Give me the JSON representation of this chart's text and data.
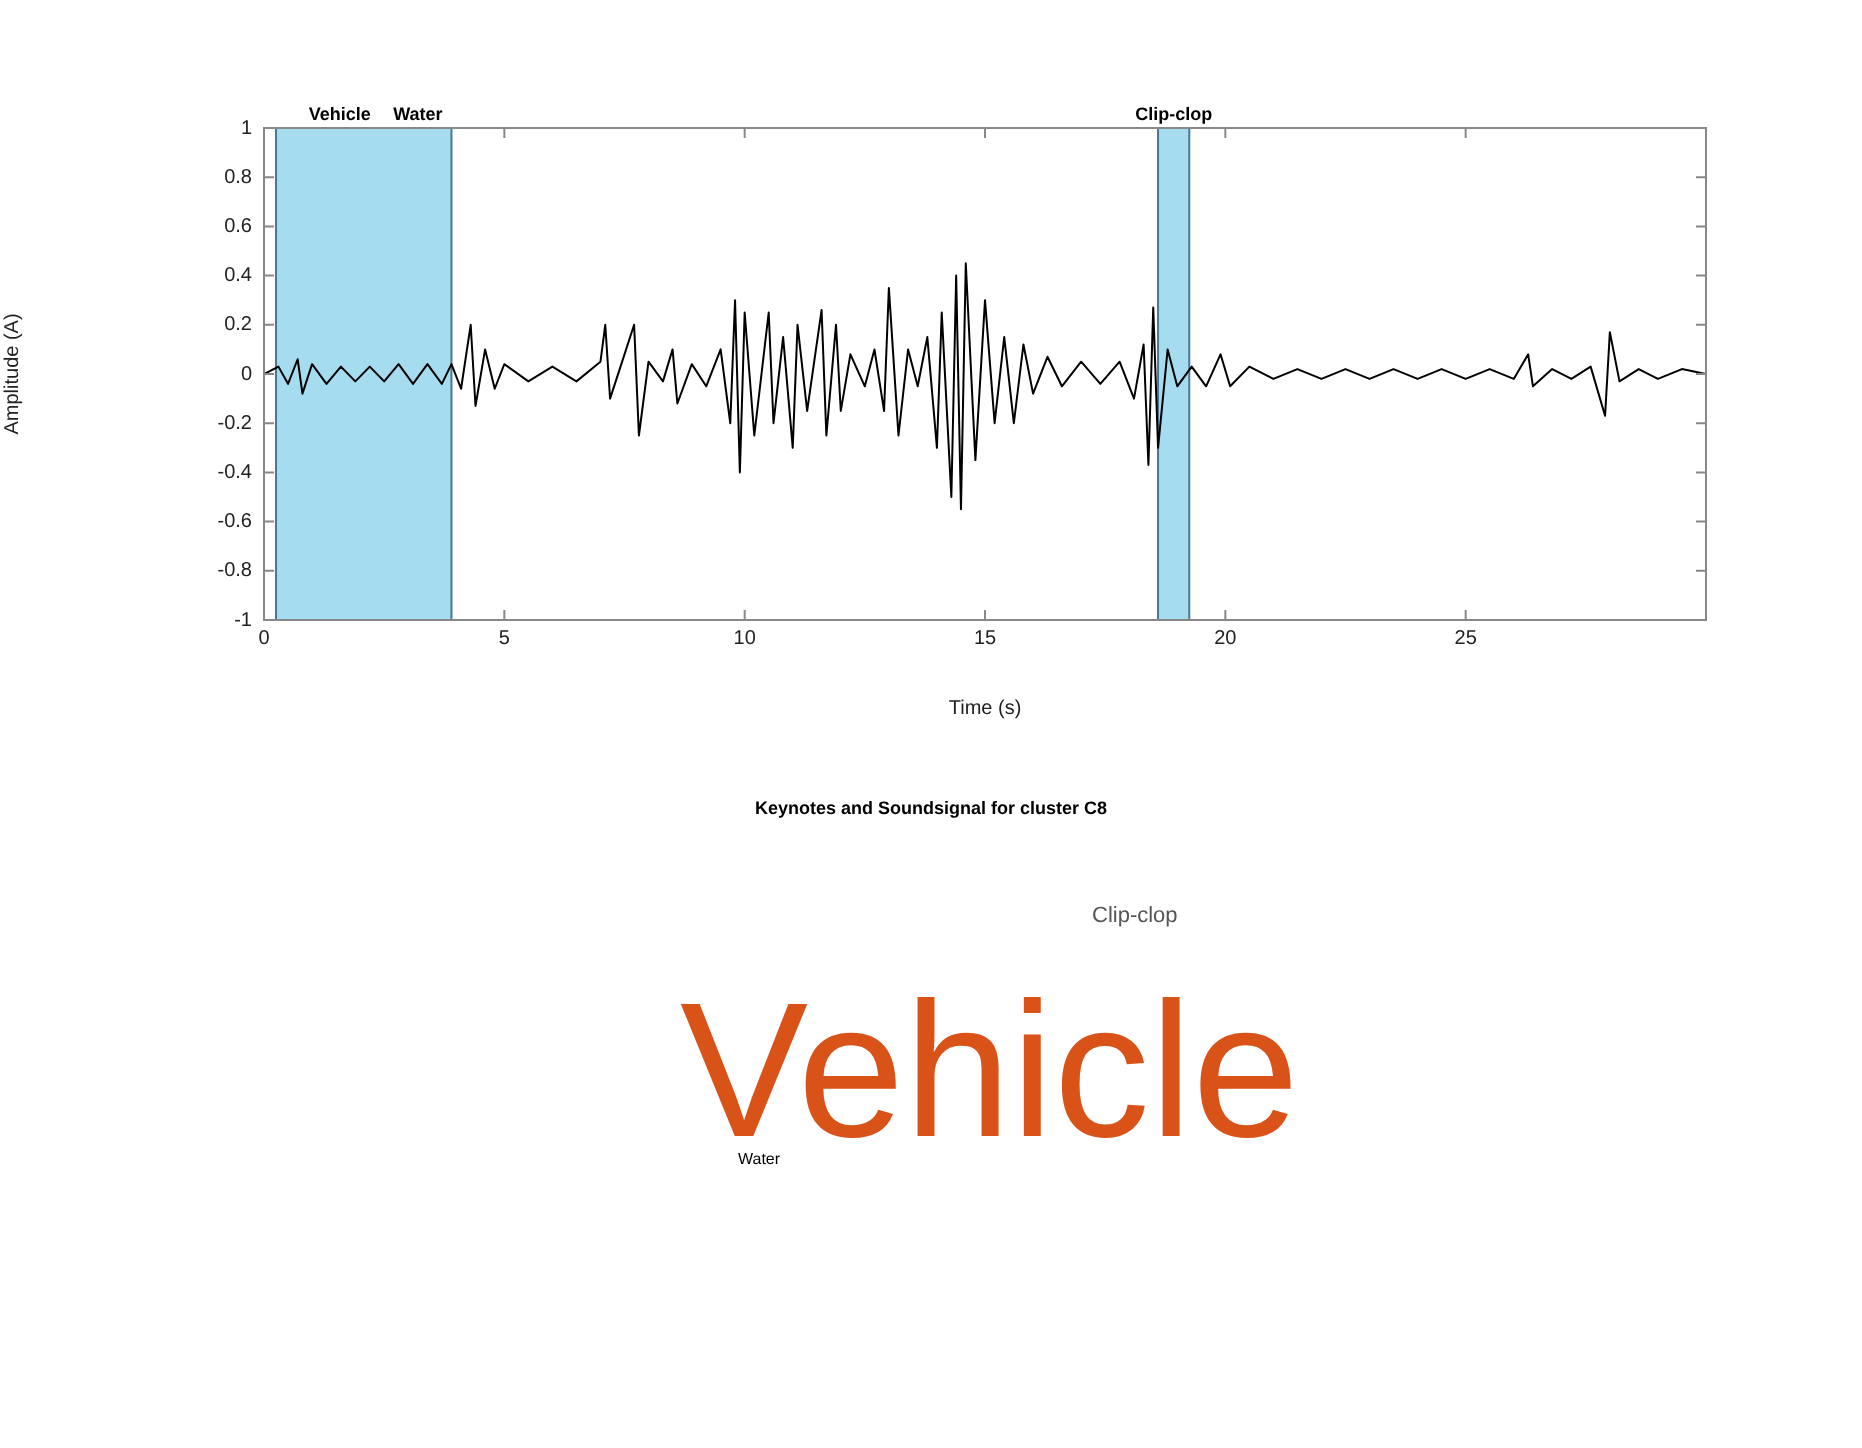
{
  "chart_data": [
    {
      "type": "line",
      "xlabel": "Time (s)",
      "ylabel": "Amplitude (A)",
      "color": "#000000",
      "marker": "none",
      "grid": false,
      "x": [
        0,
        0.3,
        0.5,
        0.7,
        0.8,
        1.0,
        1.3,
        1.6,
        1.9,
        2.2,
        2.5,
        2.8,
        3.1,
        3.4,
        3.7,
        3.9,
        4.1,
        4.3,
        4.4,
        4.6,
        4.8,
        5.0,
        5.5,
        6.0,
        6.5,
        7.0,
        7.1,
        7.2,
        7.5,
        7.7,
        7.8,
        8.0,
        8.3,
        8.5,
        8.6,
        8.9,
        9.2,
        9.5,
        9.7,
        9.8,
        9.9,
        10.0,
        10.2,
        10.5,
        10.6,
        10.8,
        11.0,
        11.1,
        11.3,
        11.6,
        11.7,
        11.9,
        12.0,
        12.2,
        12.5,
        12.7,
        12.9,
        13.0,
        13.2,
        13.4,
        13.6,
        13.8,
        14.0,
        14.1,
        14.3,
        14.4,
        14.5,
        14.6,
        14.8,
        15.0,
        15.2,
        15.4,
        15.6,
        15.8,
        16.0,
        16.3,
        16.6,
        17.0,
        17.4,
        17.8,
        18.1,
        18.3,
        18.4,
        18.5,
        18.6,
        18.8,
        19.0,
        19.3,
        19.6,
        19.9,
        20.1,
        20.5,
        21.0,
        21.5,
        22.0,
        22.5,
        23.0,
        23.5,
        24.0,
        24.5,
        25.0,
        25.5,
        26.0,
        26.3,
        26.4,
        26.8,
        27.2,
        27.6,
        27.9,
        28.0,
        28.2,
        28.6,
        29.0,
        29.5,
        30.0
      ],
      "values": [
        0,
        0.03,
        -0.04,
        0.06,
        -0.08,
        0.04,
        -0.04,
        0.03,
        -0.03,
        0.03,
        -0.03,
        0.04,
        -0.04,
        0.04,
        -0.04,
        0.04,
        -0.06,
        0.2,
        -0.13,
        0.1,
        -0.06,
        0.04,
        -0.03,
        0.03,
        -0.03,
        0.05,
        0.2,
        -0.1,
        0.08,
        0.2,
        -0.25,
        0.05,
        -0.03,
        0.1,
        -0.12,
        0.04,
        -0.05,
        0.1,
        -0.2,
        0.3,
        -0.4,
        0.25,
        -0.25,
        0.25,
        -0.2,
        0.15,
        -0.3,
        0.2,
        -0.15,
        0.26,
        -0.25,
        0.2,
        -0.15,
        0.08,
        -0.05,
        0.1,
        -0.15,
        0.35,
        -0.25,
        0.1,
        -0.05,
        0.15,
        -0.3,
        0.25,
        -0.5,
        0.4,
        -0.55,
        0.45,
        -0.35,
        0.3,
        -0.2,
        0.15,
        -0.2,
        0.12,
        -0.08,
        0.07,
        -0.05,
        0.05,
        -0.04,
        0.05,
        -0.1,
        0.12,
        -0.37,
        0.27,
        -0.3,
        0.1,
        -0.05,
        0.03,
        -0.05,
        0.08,
        -0.05,
        0.03,
        -0.02,
        0.02,
        -0.02,
        0.02,
        -0.02,
        0.02,
        -0.02,
        0.02,
        -0.02,
        0.02,
        -0.02,
        0.08,
        -0.05,
        0.02,
        -0.02,
        0.03,
        -0.17,
        0.17,
        -0.03,
        0.02,
        -0.02,
        0.02,
        0
      ],
      "xlim": [
        0,
        30
      ],
      "ylim": [
        -1,
        1
      ],
      "xticks": [
        0,
        5,
        10,
        15,
        20,
        25
      ],
      "yticks": [
        -1,
        {
          "value": -0.8,
          "label": "-0.8"
        },
        {
          "value": -0.6,
          "label": "-0.6"
        },
        {
          "value": -0.4,
          "label": "-0.4"
        },
        {
          "value": -0.2,
          "label": "-0.2"
        },
        0,
        {
          "value": 0.2,
          "label": "0.2"
        },
        {
          "value": 0.4,
          "label": "0.4"
        },
        {
          "value": 0.6,
          "label": "0.6"
        },
        {
          "value": 0.8,
          "label": "0.8"
        },
        1
      ],
      "bands": [
        {
          "axis": "x",
          "from": 0.25,
          "to": 3.9,
          "label": "Vehicle",
          "color": "#a6dcf0"
        },
        {
          "axis": "x",
          "from": 18.6,
          "to": 19.25,
          "label": "Clip-clop",
          "color": "#a6dcf0"
        }
      ],
      "annotations": [
        {
          "text": "Water",
          "x": 3.2,
          "y": 1
        }
      ]
    },
    {
      "type": "other",
      "title": "Keynotes and Soundsignal for cluster C8",
      "annotations": [
        "Vehicle",
        "Clip-clop",
        "Water"
      ]
    }
  ]
}
